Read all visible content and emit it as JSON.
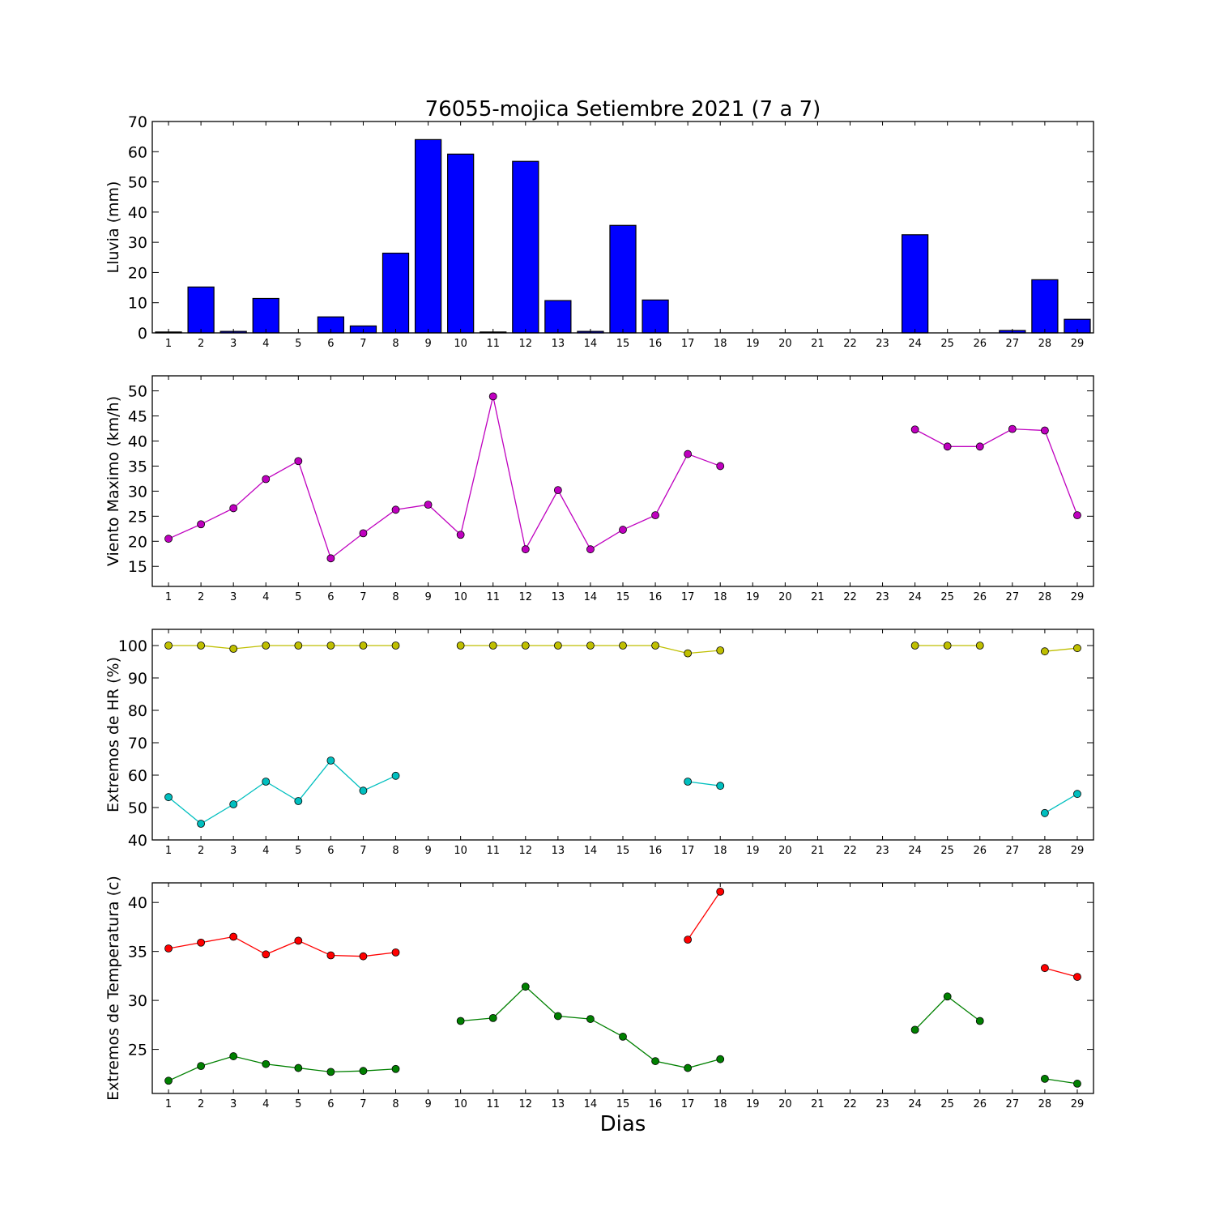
{
  "title": "76055-mojica Setiembre 2021  (7 a 7)",
  "xlabel": "Dias",
  "chart_data": [
    {
      "type": "bar",
      "ylabel": "Lluvia (mm)",
      "ylim": [
        0,
        70
      ],
      "yticks": [
        0,
        10,
        20,
        30,
        40,
        50,
        60,
        70
      ],
      "categories": [
        1,
        2,
        3,
        4,
        5,
        6,
        7,
        8,
        9,
        10,
        11,
        12,
        13,
        14,
        15,
        16,
        17,
        18,
        19,
        20,
        21,
        22,
        23,
        24,
        25,
        26,
        27,
        28,
        29
      ],
      "series": [
        {
          "color": "#0000ff",
          "values": [
            0.3,
            15.2,
            0.5,
            11.4,
            0,
            5.3,
            2.3,
            26.4,
            64,
            59.2,
            0.3,
            56.8,
            10.7,
            0.5,
            35.6,
            10.9,
            0,
            0,
            0,
            0,
            0,
            0,
            0,
            32.5,
            0,
            0,
            0.8,
            17.6,
            4.5
          ]
        }
      ]
    },
    {
      "type": "line",
      "ylabel": "Viento Maximo (km/h)",
      "ylim": [
        11,
        53
      ],
      "yticks": [
        15,
        20,
        25,
        30,
        35,
        40,
        45,
        50
      ],
      "categories": [
        1,
        2,
        3,
        4,
        5,
        6,
        7,
        8,
        9,
        10,
        11,
        12,
        13,
        14,
        15,
        16,
        17,
        18,
        19,
        20,
        21,
        22,
        23,
        24,
        25,
        26,
        27,
        28,
        29
      ],
      "series": [
        {
          "color": "#bf00bf",
          "values": [
            20.5,
            23.4,
            26.6,
            32.4,
            36.0,
            16.6,
            21.6,
            26.3,
            27.3,
            21.3,
            48.9,
            18.4,
            30.2,
            18.4,
            22.3,
            25.2,
            37.4,
            35.0,
            null,
            null,
            null,
            null,
            null,
            42.3,
            38.9,
            38.9,
            42.4,
            42.1,
            25.2
          ]
        }
      ]
    },
    {
      "type": "line",
      "ylabel": "Extremos de HR (%)",
      "ylim": [
        40,
        105
      ],
      "yticks": [
        40,
        50,
        60,
        70,
        80,
        90,
        100
      ],
      "categories": [
        1,
        2,
        3,
        4,
        5,
        6,
        7,
        8,
        9,
        10,
        11,
        12,
        13,
        14,
        15,
        16,
        17,
        18,
        19,
        20,
        21,
        22,
        23,
        24,
        25,
        26,
        27,
        28,
        29
      ],
      "series": [
        {
          "color": "#bfbf00",
          "values": [
            100,
            100,
            99,
            100,
            100,
            100,
            100,
            100,
            null,
            100,
            100,
            100,
            100,
            100,
            100,
            100,
            97.6,
            98.5,
            null,
            null,
            null,
            null,
            null,
            100,
            100,
            100,
            null,
            98.2,
            99.2
          ]
        },
        {
          "color": "#00bfbf",
          "values": [
            53.2,
            45.0,
            51.0,
            58.0,
            52.0,
            64.5,
            55.2,
            59.8,
            null,
            null,
            null,
            null,
            null,
            null,
            null,
            null,
            58.0,
            56.7,
            null,
            null,
            null,
            null,
            null,
            null,
            null,
            null,
            null,
            48.3,
            54.2
          ]
        }
      ]
    },
    {
      "type": "line",
      "ylabel": "Extremos de Temperatura (c)",
      "ylim": [
        20.5,
        42
      ],
      "yticks": [
        25,
        30,
        35,
        40
      ],
      "categories": [
        1,
        2,
        3,
        4,
        5,
        6,
        7,
        8,
        9,
        10,
        11,
        12,
        13,
        14,
        15,
        16,
        17,
        18,
        19,
        20,
        21,
        22,
        23,
        24,
        25,
        26,
        27,
        28,
        29
      ],
      "series": [
        {
          "color": "#ff0000",
          "values": [
            35.3,
            35.9,
            36.5,
            34.7,
            36.1,
            34.6,
            34.5,
            34.9,
            null,
            null,
            null,
            null,
            null,
            null,
            null,
            null,
            36.2,
            41.1,
            null,
            null,
            null,
            null,
            null,
            null,
            null,
            null,
            null,
            33.3,
            32.4
          ]
        },
        {
          "color": "#008000",
          "values": [
            21.8,
            23.3,
            24.3,
            23.5,
            23.1,
            22.7,
            22.8,
            23.0,
            null,
            27.9,
            28.2,
            31.4,
            28.4,
            28.1,
            26.3,
            23.8,
            23.1,
            24.0,
            null,
            null,
            null,
            null,
            null,
            27.0,
            30.4,
            27.9,
            null,
            22.0,
            21.5
          ]
        }
      ]
    }
  ]
}
